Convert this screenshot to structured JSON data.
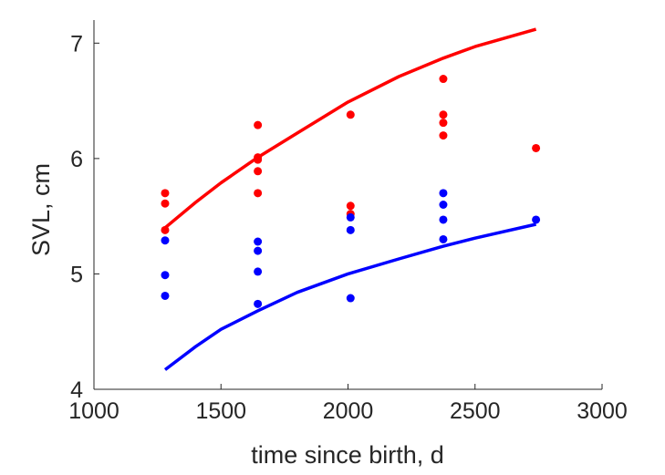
{
  "chart_data": {
    "type": "scatter",
    "xlabel": "time since birth, d",
    "ylabel": "SVL, cm",
    "xlim": [
      1000,
      3000
    ],
    "ylim": [
      4,
      7.2
    ],
    "x_ticks": [
      1000,
      1500,
      2000,
      2500,
      3000
    ],
    "y_ticks": [
      4,
      5,
      6,
      7
    ],
    "grid": false,
    "legend": "none",
    "colors": {
      "red": "#ff0000",
      "blue": "#0000ff",
      "axis": "#262626"
    },
    "series": [
      {
        "kind": "scatter",
        "color": "#ff0000",
        "points": [
          [
            1280,
            5.7
          ],
          [
            1280,
            5.61
          ],
          [
            1280,
            5.38
          ],
          [
            1645,
            6.29
          ],
          [
            1645,
            6.01
          ],
          [
            1645,
            5.99
          ],
          [
            1645,
            5.89
          ],
          [
            1645,
            5.7
          ],
          [
            2010,
            6.38
          ],
          [
            2010,
            5.59
          ],
          [
            2010,
            5.52
          ],
          [
            2375,
            6.69
          ],
          [
            2375,
            6.38
          ],
          [
            2375,
            6.31
          ],
          [
            2375,
            6.2
          ],
          [
            2740,
            6.09
          ]
        ]
      },
      {
        "kind": "scatter",
        "color": "#0000ff",
        "points": [
          [
            1280,
            5.29
          ],
          [
            1280,
            4.99
          ],
          [
            1280,
            4.81
          ],
          [
            1645,
            5.28
          ],
          [
            1645,
            5.2
          ],
          [
            1645,
            5.02
          ],
          [
            1645,
            4.74
          ],
          [
            2010,
            5.49
          ],
          [
            2010,
            5.38
          ],
          [
            2010,
            4.79
          ],
          [
            2375,
            5.7
          ],
          [
            2375,
            5.6
          ],
          [
            2375,
            5.47
          ],
          [
            2375,
            5.3
          ],
          [
            2740,
            5.47
          ]
        ]
      },
      {
        "kind": "line",
        "color": "#ff0000",
        "points": [
          [
            1280,
            5.4
          ],
          [
            1400,
            5.62
          ],
          [
            1500,
            5.79
          ],
          [
            1645,
            6.01
          ],
          [
            1800,
            6.22
          ],
          [
            2000,
            6.49
          ],
          [
            2200,
            6.71
          ],
          [
            2375,
            6.87
          ],
          [
            2500,
            6.97
          ],
          [
            2740,
            7.12
          ]
        ]
      },
      {
        "kind": "line",
        "color": "#0000ff",
        "points": [
          [
            1280,
            4.17
          ],
          [
            1400,
            4.37
          ],
          [
            1500,
            4.52
          ],
          [
            1645,
            4.68
          ],
          [
            1800,
            4.84
          ],
          [
            2000,
            5.0
          ],
          [
            2200,
            5.13
          ],
          [
            2375,
            5.24
          ],
          [
            2500,
            5.31
          ],
          [
            2740,
            5.43
          ]
        ]
      }
    ]
  }
}
